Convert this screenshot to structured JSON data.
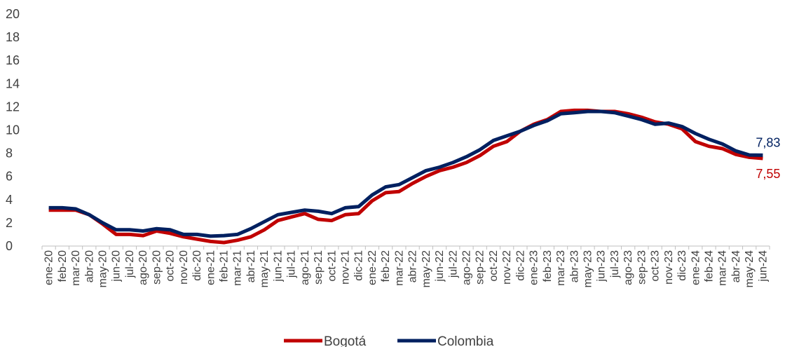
{
  "chart_data": {
    "type": "line",
    "title": "",
    "xlabel": "",
    "ylabel": "",
    "ylim": [
      0,
      20
    ],
    "ytick_step": 2,
    "grid": false,
    "legend_position": "bottom-center",
    "categories": [
      "ene-20",
      "feb-20",
      "mar-20",
      "abr-20",
      "may-20",
      "jun-20",
      "jul-20",
      "ago-20",
      "sep-20",
      "oct-20",
      "nov-20",
      "dic-20",
      "ene-21",
      "feb-21",
      "mar-21",
      "abr-21",
      "may-21",
      "jun-21",
      "jul-21",
      "ago-21",
      "sep-21",
      "oct-21",
      "nov-21",
      "dic-21",
      "ene-22",
      "feb-22",
      "mar-22",
      "abr-22",
      "may-22",
      "jun-22",
      "jul-22",
      "ago-22",
      "sep-22",
      "oct-22",
      "nov-22",
      "dic-22",
      "ene-23",
      "feb-23",
      "mar-23",
      "abr-23",
      "may-23",
      "jun-23",
      "jul-23",
      "ago-23",
      "sep-23",
      "oct-23",
      "nov-23",
      "dic-23",
      "ene-24",
      "feb-24",
      "mar-24",
      "abr-24",
      "may-24",
      "jun-24"
    ],
    "series": [
      {
        "name": "Bogotá",
        "color": "#C00000",
        "values": [
          3.1,
          3.1,
          3.1,
          2.7,
          1.9,
          1.0,
          1.0,
          0.9,
          1.3,
          1.1,
          0.8,
          0.6,
          0.4,
          0.3,
          0.5,
          0.8,
          1.4,
          2.2,
          2.5,
          2.8,
          2.3,
          2.2,
          2.7,
          2.8,
          3.9,
          4.6,
          4.7,
          5.4,
          6.0,
          6.5,
          6.8,
          7.2,
          7.8,
          8.6,
          9.0,
          9.9,
          10.5,
          10.9,
          11.6,
          11.7,
          11.7,
          11.6,
          11.6,
          11.4,
          11.1,
          10.7,
          10.5,
          10.1,
          9.0,
          8.6,
          8.4,
          7.9,
          7.65,
          7.55
        ],
        "end_label": "7,55"
      },
      {
        "name": "Colombia",
        "color": "#002060",
        "values": [
          3.3,
          3.3,
          3.2,
          2.7,
          2.0,
          1.4,
          1.4,
          1.3,
          1.5,
          1.4,
          1.0,
          1.0,
          0.85,
          0.9,
          1.0,
          1.5,
          2.1,
          2.7,
          2.9,
          3.1,
          3.0,
          2.8,
          3.3,
          3.4,
          4.4,
          5.1,
          5.3,
          5.9,
          6.5,
          6.8,
          7.2,
          7.7,
          8.3,
          9.1,
          9.5,
          9.9,
          10.4,
          10.8,
          11.4,
          11.5,
          11.6,
          11.6,
          11.5,
          11.2,
          10.9,
          10.5,
          10.6,
          10.3,
          9.7,
          9.2,
          8.8,
          8.2,
          7.85,
          7.83
        ],
        "end_label": "7,83"
      }
    ]
  },
  "ytick_labels": [
    "0",
    "2",
    "4",
    "6",
    "8",
    "10",
    "12",
    "14",
    "16",
    "18",
    "20"
  ]
}
